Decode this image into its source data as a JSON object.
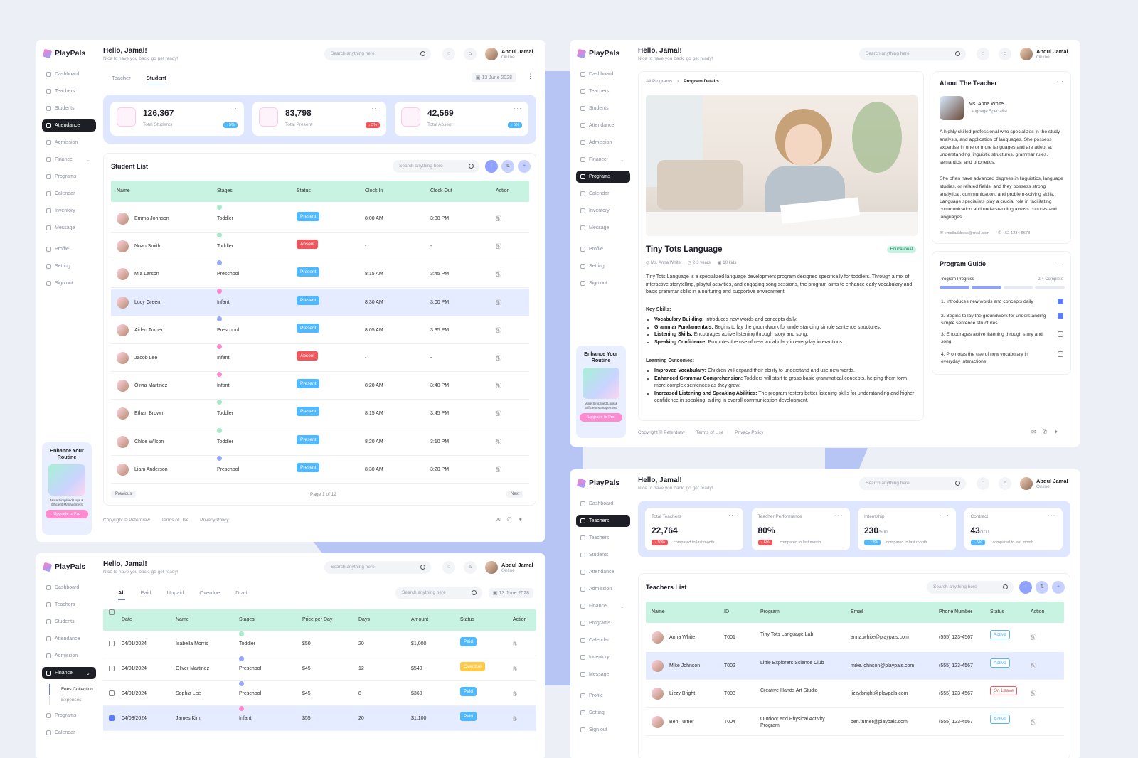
{
  "brand": "PlayPals",
  "greeting": "Hello, Jamal!",
  "greeting_sub": "Nice to have you back, go get ready!",
  "search_placeholder": "Search anything here",
  "user": {
    "name": "Abdul Jamal",
    "status": "Online"
  },
  "nav": [
    "Dashboard",
    "Teachers",
    "Students",
    "Attendance",
    "Admission",
    "Finance",
    "Programs",
    "Calendar",
    "Inventory",
    "Message"
  ],
  "nav_bottom": [
    "Profile",
    "Setting",
    "Sign out"
  ],
  "finance_sub": [
    "Fees Collection",
    "Expenses"
  ],
  "promo": {
    "title": "Enhance Your Routine",
    "sub": "More Simplified Logs & Efficient Management",
    "button": "Upgrade to Pro"
  },
  "date": "13 June 2028",
  "footer": {
    "copy": "Copyright © Peterdraw",
    "terms": "Terms of Use",
    "privacy": "Privacy Policy"
  },
  "colors": {
    "accent": "#5b7cff",
    "mint": "#c8f2e2",
    "present": "#4fb8ff",
    "absent": "#f2565a",
    "paid": "#4fb8ff",
    "overdue": "#ffc94a",
    "active": "#4fb8ff",
    "leave": "#f2565a",
    "toddler": "#a5e9c9",
    "preschool": "#97a8ff",
    "infant": "#ff8ad0"
  },
  "attendance": {
    "tabs": [
      "Teacher",
      "Student"
    ],
    "stats": [
      {
        "value": "126,367",
        "label": "Total Students",
        "badge": "↑ 5%"
      },
      {
        "value": "83,798",
        "label": "Total Present",
        "badge": "↓ 3%"
      },
      {
        "value": "42,569",
        "label": "Total Absent",
        "badge": "↑ 5%"
      }
    ],
    "list_title": "Student List",
    "columns": [
      "Name",
      "Stages",
      "Status",
      "Clock In",
      "Clock Out",
      "Action"
    ],
    "rows": [
      {
        "name": "Emma Johnson",
        "stage": "Toddler",
        "status": "Present",
        "in": "8:00 AM",
        "out": "3:30 PM"
      },
      {
        "name": "Noah Smith",
        "stage": "Toddler",
        "status": "Absent",
        "in": "-",
        "out": "-"
      },
      {
        "name": "Mia Larson",
        "stage": "Preschool",
        "status": "Present",
        "in": "8:15 AM",
        "out": "3:45 PM"
      },
      {
        "name": "Lucy Green",
        "stage": "Infant",
        "status": "Present",
        "in": "8:30 AM",
        "out": "3:00 PM"
      },
      {
        "name": "Aiden Turner",
        "stage": "Preschool",
        "status": "Present",
        "in": "8:05 AM",
        "out": "3:35 PM"
      },
      {
        "name": "Jacob Lee",
        "stage": "Infant",
        "status": "Absent",
        "in": "-",
        "out": "-"
      },
      {
        "name": "Olivia Martinez",
        "stage": "Infant",
        "status": "Present",
        "in": "8:20 AM",
        "out": "3:40 PM"
      },
      {
        "name": "Ethan Brown",
        "stage": "Toddler",
        "status": "Present",
        "in": "8:15 AM",
        "out": "3:45 PM"
      },
      {
        "name": "Chloe Wilson",
        "stage": "Toddler",
        "status": "Present",
        "in": "8:20 AM",
        "out": "3:10 PM"
      },
      {
        "name": "Liam Anderson",
        "stage": "Preschool",
        "status": "Present",
        "in": "8:30 AM",
        "out": "3:20 PM"
      }
    ],
    "prev": "Previous",
    "page": "Page 1 of 12",
    "next": "Next"
  },
  "finance": {
    "tabs": [
      "All",
      "Paid",
      "Unpaid",
      "Overdue",
      "Draft"
    ],
    "columns": [
      "Date",
      "Name",
      "Stages",
      "Price per Day",
      "Days",
      "Amount",
      "Status",
      "Action"
    ],
    "rows": [
      {
        "date": "04/01/2024",
        "name": "Isabella Morris",
        "stage": "Toddler",
        "price": "$50",
        "days": "20",
        "amount": "$1,000",
        "status": "Paid"
      },
      {
        "date": "04/01/2024",
        "name": "Oliver Martinez",
        "stage": "Preschool",
        "price": "$45",
        "days": "12",
        "amount": "$540",
        "status": "Overdue"
      },
      {
        "date": "04/01/2024",
        "name": "Sophia Lee",
        "stage": "Preschool",
        "price": "$45",
        "days": "8",
        "amount": "$360",
        "status": "Paid"
      },
      {
        "date": "04/03/2024",
        "name": "James Kim",
        "stage": "Infant",
        "price": "$55",
        "days": "20",
        "amount": "$1,100",
        "status": "Paid"
      }
    ]
  },
  "program": {
    "crumb_root": "All Programs",
    "crumb_current": "Program Details",
    "title": "Tiny Tots Language",
    "tag": "Educational",
    "meta": [
      "Ms. Anna White",
      "2-3 years",
      "10 kids"
    ],
    "desc": "Tiny Tots Language is a specialized language development program designed specifically for toddlers. Through a mix of interactive storytelling, playful activities, and engaging song sessions, the program aims to enhance early vocabulary and basic grammar skills in a nurturing and supportive environment.",
    "skills_title": "Key Skills:",
    "skills": [
      {
        "k": "Vocabulary Building:",
        "v": " Introduces new words and concepts daily."
      },
      {
        "k": "Grammar Fundamentals:",
        "v": " Begins to lay the groundwork for understanding simple sentence structures."
      },
      {
        "k": "Listening Skills:",
        "v": " Encourages active listening through story and song."
      },
      {
        "k": "Speaking Confidence:",
        "v": " Promotes the use of new vocabulary in everyday interactions."
      }
    ],
    "outcomes_title": "Learning Outcomes:",
    "outcomes": [
      {
        "k": "Improved Vocabulary:",
        "v": " Children will expand their ability to understand and use new words."
      },
      {
        "k": "Enhanced Grammar Comprehension:",
        "v": " Toddlers will start to grasp basic grammatical concepts, helping them form more complex sentences as they grow."
      },
      {
        "k": "Increased Listening and Speaking Abilities:",
        "v": " The program fosters better listening skills for understanding and higher confidence in speaking, aiding in overall communication development."
      }
    ],
    "about_title": "About The Teacher",
    "teacher": "Ms. Anna White",
    "teacher_role": "Language Specialist",
    "about1": "A highly skilled professional who specializes in the study, analysis, and application of languages. She possess expertise in one or more languages and are adept at understanding linguistic structures, grammar rules, semantics, and phonetics.",
    "about2": "She often have advanced degrees in linguistics, language studies, or related fields, and they possess strong analytical, communication, and problem-solving skills. Language specialists play a crucial role in facilitating communication and understanding across cultures and languages.",
    "email": "emailaddress@mail.com",
    "phone": "+62 1234 5678",
    "guide_title": "Program Guide",
    "progress_label": "Program Progress",
    "progress_text": "2/4 Complete",
    "progress": 0.5,
    "guide": [
      {
        "t": "1. Introduces new words and concepts daily",
        "done": true
      },
      {
        "t": "2. Begins to lay the groundwork for understanding simple sentence structures",
        "done": true
      },
      {
        "t": "3. Encourages active listening through story and song",
        "done": false
      },
      {
        "t": "4. Promotes the use of new vocabulary in everyday interactions",
        "done": false
      }
    ]
  },
  "teachers": {
    "stats": [
      {
        "label": "Total Teachers",
        "value": "22,764",
        "sub": "",
        "badge": "↓ 10%",
        "note": "compared to last month"
      },
      {
        "label": "Teacher Performance",
        "value": "80%",
        "sub": "",
        "badge": "↓ 6%",
        "note": "compared to last month"
      },
      {
        "label": "Internship",
        "value": "230",
        "sub": "/500",
        "badge": "↑ 12%",
        "note": "compared to last month"
      },
      {
        "label": "Contract",
        "value": "43",
        "sub": "/100",
        "badge": "↑ 5%",
        "note": "compared to last month"
      }
    ],
    "list_title": "Teachers List",
    "columns": [
      "Name",
      "ID",
      "Program",
      "Email",
      "Phone Number",
      "Status",
      "Action"
    ],
    "rows": [
      {
        "name": "Anna White",
        "id": "T001",
        "program": "Tiny Tots Language Lab",
        "email": "anna.white@playpals.com",
        "phone": "(555) 123-4567",
        "status": "Active"
      },
      {
        "name": "Mike Johnson",
        "id": "T002",
        "program": "Little Explorers Science Club",
        "email": "mike.johnson@playpals.com",
        "phone": "(555) 123-4567",
        "status": "Active"
      },
      {
        "name": "Lizzy Bright",
        "id": "T003",
        "program": "Creative Hands Art Studio",
        "email": "lizzy.bright@playpals.com",
        "phone": "(555) 123-4567",
        "status": "On Leave"
      },
      {
        "name": "Ben Turner",
        "id": "T004",
        "program": "Outdoor and Physical Activity Program",
        "email": "ben.turner@playpals.com",
        "phone": "(555) 123-4567",
        "status": "Active"
      }
    ]
  }
}
